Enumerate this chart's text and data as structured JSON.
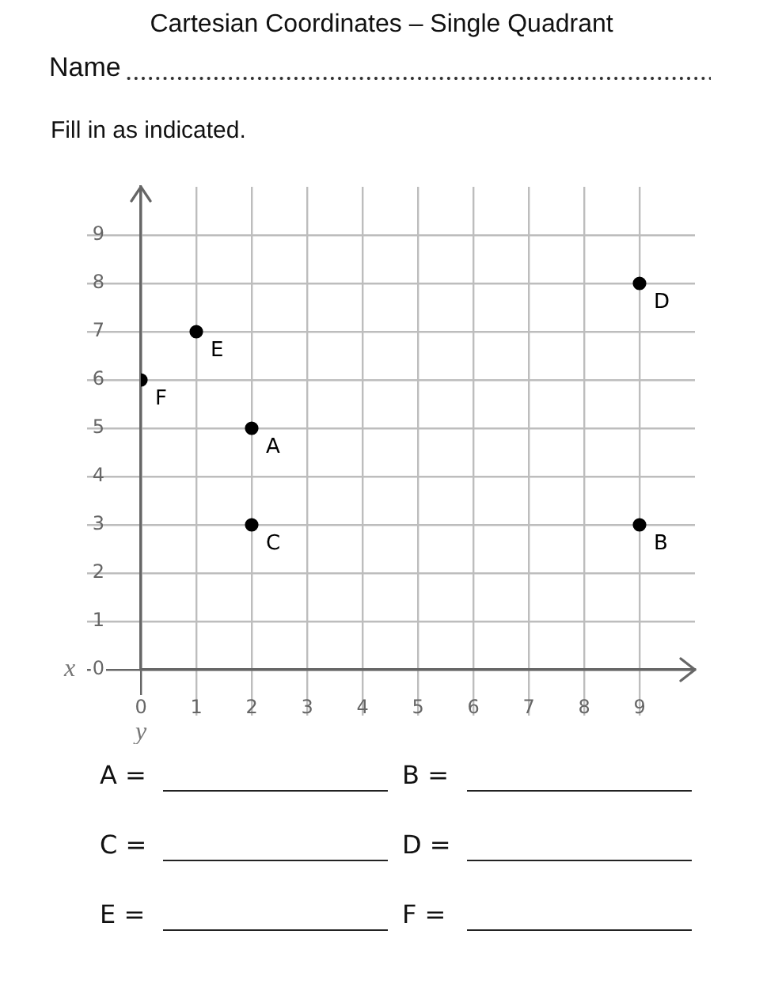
{
  "chart_data": {
    "type": "scatter",
    "title": "Cartesian Coordinates – Single Quadrant",
    "xlabel": "x",
    "ylabel": "y",
    "x": [
      2,
      9,
      2,
      9,
      1,
      0
    ],
    "values": [
      5,
      3,
      3,
      8,
      7,
      6
    ],
    "color": "#000000",
    "marker": "circle",
    "grid": true,
    "xlim": [
      0,
      10
    ],
    "ylim": [
      0,
      10
    ],
    "xticks": [
      0,
      1,
      2,
      3,
      4,
      5,
      6,
      7,
      8,
      9
    ],
    "yticks": [
      0,
      1,
      2,
      3,
      4,
      5,
      6,
      7,
      8,
      9
    ],
    "annotations": [
      "Name",
      "Fill in as indicated.",
      "A =",
      "B =",
      "C =",
      "D =",
      "E =",
      "F =",
      {
        "text": "A",
        "x": 2,
        "y": 5
      },
      {
        "text": "B",
        "x": 9,
        "y": 3
      },
      {
        "text": "C",
        "x": 2,
        "y": 3
      },
      {
        "text": "D",
        "x": 9,
        "y": 8
      },
      {
        "text": "E",
        "x": 1,
        "y": 7
      },
      {
        "text": "F",
        "x": 0,
        "y": 6
      }
    ]
  }
}
